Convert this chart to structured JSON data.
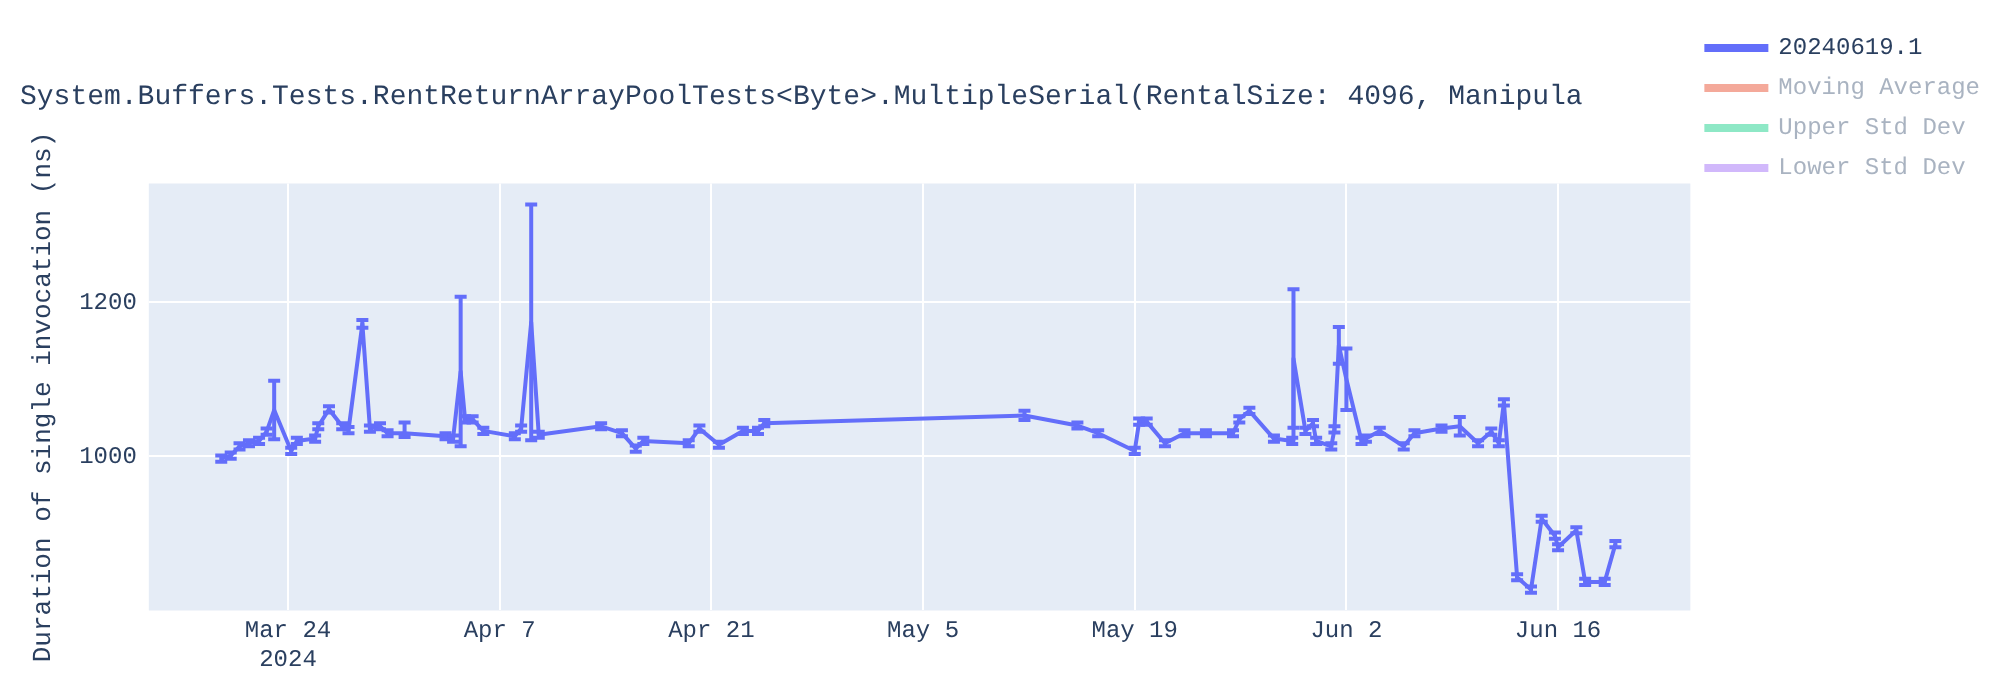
{
  "chart_data": {
    "type": "line",
    "title": "System.Buffers.Tests.RentReturnArrayPoolTests<Byte>.MultipleSerial(RentalSize: 4096, Manipula",
    "ylabel": "Duration of single invocation (ns)",
    "x": [
      "2024-03-19T14:00",
      "2024-03-20T05:00",
      "2024-03-20T19:00",
      "2024-03-21T10:00",
      "2024-03-22T02:00",
      "2024-03-22T14:00",
      "2024-03-23T02:00",
      "2024-03-24T05:00",
      "2024-03-24T14:00",
      "2024-03-25T19:00",
      "2024-03-26T00:00",
      "2024-03-26T17:00",
      "2024-03-27T14:00",
      "2024-03-28T00:00",
      "2024-03-28T22:00",
      "2024-03-29T10:00",
      "2024-03-30T02:00",
      "2024-03-30T14:00",
      "2024-03-31T17:00",
      "2024-04-03T10:00",
      "2024-04-03T22:00",
      "2024-04-04T10:00",
      "2024-04-04T17:00",
      "2024-04-05T05:00",
      "2024-04-05T22:00",
      "2024-04-08T00:00",
      "2024-04-08T10:00",
      "2024-04-09T02:00",
      "2024-04-09T14:00",
      "2024-04-13T17:00",
      "2024-04-15T02:00",
      "2024-04-16T00:00",
      "2024-04-16T12:00",
      "2024-04-19T12:00",
      "2024-04-20T05:00",
      "2024-04-21T12:00",
      "2024-04-23T02:00",
      "2024-04-24T02:00",
      "2024-04-24T12:00",
      "2024-05-11T17:00",
      "2024-05-15T05:00",
      "2024-05-16T14:00",
      "2024-05-19T00:00",
      "2024-05-19T07:00",
      "2024-05-19T19:00",
      "2024-05-21T00:00",
      "2024-05-22T07:00",
      "2024-05-23T17:00",
      "2024-05-25T12:00",
      "2024-05-25T22:00",
      "2024-05-26T14:00",
      "2024-05-28T05:00",
      "2024-05-29T10:00",
      "2024-05-29T12:00",
      "2024-05-30T07:00",
      "2024-05-30T19:00",
      "2024-05-31T00:00",
      "2024-06-01T00:00",
      "2024-06-01T05:00",
      "2024-06-01T12:00",
      "2024-06-02T00:00",
      "2024-06-03T00:00",
      "2024-06-03T07:00",
      "2024-06-04T05:00",
      "2024-06-05T19:00",
      "2024-06-06T12:00",
      "2024-06-08T07:00",
      "2024-06-09T12:00",
      "2024-06-10T17:00",
      "2024-06-11T14:00",
      "2024-06-12T02:00",
      "2024-06-12T10:00",
      "2024-06-13T07:00",
      "2024-06-14T05:00",
      "2024-06-14T22:00",
      "2024-06-15T19:00",
      "2024-06-16T00:00",
      "2024-06-17T05:00",
      "2024-06-17T19:00",
      "2024-06-19T02:00",
      "2024-06-19T19:00"
    ],
    "series": [
      {
        "name": "20240619.1",
        "color": "#636efa",
        "values": [
          997,
          1001,
          1013,
          1017,
          1020,
          1032,
          1060,
          1007,
          1020,
          1023,
          1039,
          1061,
          1039,
          1034,
          1172,
          1036,
          1039,
          1030,
          1030,
          1026,
          1023,
          1110,
          1048,
          1048,
          1033,
          1026,
          1036,
          1174,
          1028,
          1039,
          1030,
          1010,
          1020,
          1017,
          1036,
          1015,
          1033,
          1033,
          1043,
          1053,
          1040,
          1030,
          1007,
          1045,
          1045,
          1017,
          1030,
          1030,
          1030,
          1048,
          1059,
          1023,
          1020,
          1127,
          1033,
          1043,
          1020,
          1013,
          1035,
          1144,
          1100,
          1020,
          1023,
          1033,
          1013,
          1030,
          1036,
          1039,
          1017,
          1032,
          1017,
          1070,
          843,
          827,
          919,
          897,
          882,
          904,
          837,
          837,
          886
        ],
        "errors": [
          4,
          4,
          4,
          4,
          4,
          4,
          38,
          4,
          4,
          4,
          4,
          4,
          4,
          4,
          5,
          4,
          4,
          4,
          [
            1025,
            1044
          ],
          4,
          4,
          97,
          4,
          4,
          4,
          4,
          4,
          153,
          4,
          4,
          4,
          4,
          4,
          4,
          4,
          4,
          4,
          4,
          4,
          6,
          4,
          4,
          4,
          4,
          4,
          4,
          4,
          4,
          4,
          4,
          4,
          4,
          4,
          90,
          4,
          4,
          4,
          4,
          4,
          24,
          40,
          4,
          4,
          4,
          4,
          4,
          4,
          12,
          4,
          4,
          4,
          4,
          4,
          4,
          4,
          4,
          4,
          4,
          4,
          4,
          4
        ]
      },
      {
        "name": "Moving Average",
        "color": "#f4a99a",
        "values": [
          null,
          null,
          null,
          null,
          null,
          null,
          null,
          null,
          null,
          null,
          null,
          null,
          null,
          null,
          null,
          null,
          null,
          null,
          null,
          null,
          null,
          null,
          null,
          null,
          null,
          null,
          null,
          null,
          null,
          null,
          null,
          null,
          null,
          null,
          null,
          null,
          null,
          null,
          null,
          null,
          null,
          null,
          null,
          null,
          null,
          null,
          null,
          null,
          null,
          null,
          null,
          null,
          null,
          null,
          null,
          null,
          null,
          null,
          null,
          null,
          null,
          null,
          null,
          null,
          null,
          null,
          null,
          null,
          null,
          null,
          null,
          null,
          null,
          null,
          null,
          null,
          null,
          null,
          null,
          null,
          null
        ]
      },
      {
        "name": "Upper Std Dev",
        "color": "#8ee8c6",
        "values": [
          null,
          null,
          null,
          null,
          null,
          null,
          null,
          null,
          null,
          null,
          null,
          null,
          null,
          null,
          null,
          null,
          null,
          null,
          null,
          null,
          null,
          null,
          null,
          null,
          null,
          null,
          null,
          null,
          null,
          null,
          null,
          null,
          null,
          null,
          null,
          null,
          null,
          null,
          null,
          null,
          null,
          null,
          null,
          null,
          null,
          null,
          null,
          null,
          null,
          null,
          null,
          null,
          null,
          null,
          null,
          null,
          null,
          null,
          null,
          null,
          null,
          null,
          null,
          null,
          null,
          null,
          null,
          null,
          null,
          null,
          null,
          null,
          null,
          null,
          null,
          null,
          null,
          null,
          null,
          null,
          null
        ]
      },
      {
        "name": "Lower Std Dev",
        "color": "#d1b8fb",
        "values": [
          null,
          null,
          null,
          null,
          null,
          null,
          null,
          null,
          null,
          null,
          null,
          null,
          null,
          null,
          null,
          null,
          null,
          null,
          null,
          null,
          null,
          null,
          null,
          null,
          null,
          null,
          null,
          null,
          null,
          null,
          null,
          null,
          null,
          null,
          null,
          null,
          null,
          null,
          null,
          null,
          null,
          null,
          null,
          null,
          null,
          null,
          null,
          null,
          null,
          null,
          null,
          null,
          null,
          null,
          null,
          null,
          null,
          null,
          null,
          null,
          null,
          null,
          null,
          null,
          null,
          null,
          null,
          null,
          null,
          null,
          null,
          null,
          null,
          null,
          null,
          null,
          null,
          null,
          null,
          null,
          null
        ]
      }
    ],
    "xlim": [
      "2024-03-14T19:00",
      "2024-06-24T18:00"
    ],
    "xticks": [
      {
        "value": "2024-03-24",
        "label": "Mar 24\n2024"
      },
      {
        "value": "2024-04-07",
        "label": "Apr 7"
      },
      {
        "value": "2024-04-21",
        "label": "Apr 21"
      },
      {
        "value": "2024-05-05",
        "label": "May 5"
      },
      {
        "value": "2024-05-19",
        "label": "May 19"
      },
      {
        "value": "2024-06-02",
        "label": "Jun 2"
      },
      {
        "value": "2024-06-16",
        "label": "Jun 16"
      }
    ],
    "ylim": [
      800,
      1354
    ],
    "yticks": [
      1000,
      1200
    ],
    "grid": true,
    "legend": "right",
    "marker": "none",
    "line_style": "solid"
  }
}
